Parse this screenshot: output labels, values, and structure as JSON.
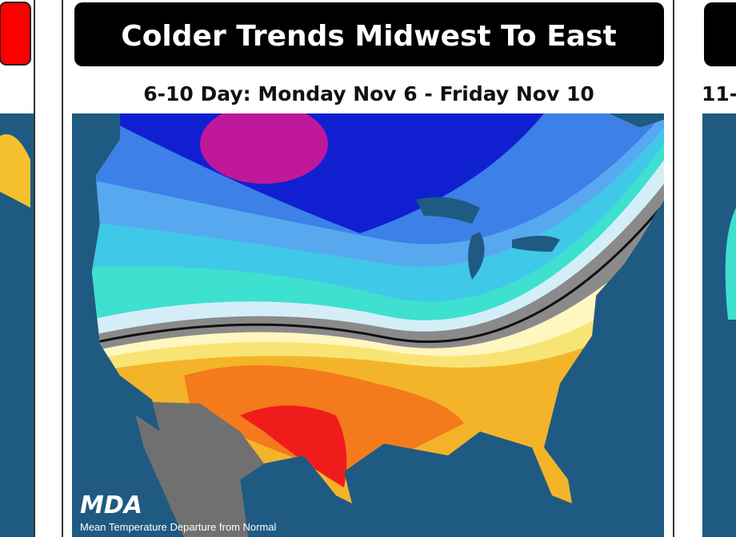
{
  "main": {
    "title": "Colder Trends Midwest To East",
    "subtitle": "6-10 Day: Monday Nov 6 - Friday Nov 10",
    "logo": "MDA",
    "caption": "Mean Temperature Departure from Normal"
  },
  "right": {
    "subtitle": "11-"
  }
}
